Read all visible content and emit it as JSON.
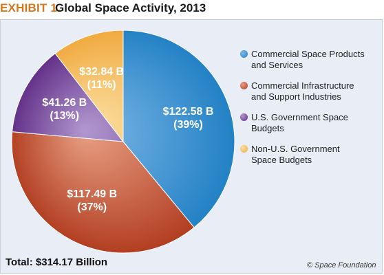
{
  "header": {
    "exhibit": "EXHIBIT 1.",
    "title": "Global Space Activity, 2013"
  },
  "chart_data": {
    "type": "pie",
    "title": "Global Space Activity, 2013",
    "unit": "Billion USD",
    "total_label": "Total: $314.17 Billion",
    "slices": [
      {
        "name": "Commercial Space Products and Services",
        "value": 122.58,
        "value_label": "$122.58 B",
        "percent_label": "(39%)",
        "color": "#1f7fc4",
        "color_light": "#7fb8e6"
      },
      {
        "name": "Commercial Infrastructure and Support Industries",
        "value": 117.49,
        "value_label": "$117.49 B",
        "percent_label": "(37%)",
        "color": "#b03a1d",
        "color_light": "#e8a085"
      },
      {
        "name": "U.S. Government Space Budgets",
        "value": 41.26,
        "value_label": "$41.26 B",
        "percent_label": "(13%)",
        "color": "#5e2a84",
        "color_light": "#b197cf"
      },
      {
        "name": "Non-U.S. Government Space Budgets",
        "value": 32.84,
        "value_label": "$32.84 B",
        "percent_label": "(11%)",
        "color": "#f0a73a",
        "color_light": "#fbe1a6"
      }
    ],
    "legend": [
      {
        "line1": "Commercial Space Products",
        "line2": "and Services"
      },
      {
        "line1": "Commercial Infrastructure",
        "line2": "and Support Industries"
      },
      {
        "line1": "U.S. Government Space",
        "line2": "Budgets"
      },
      {
        "line1": "Non-U.S. Government",
        "line2": "Space Budgets"
      }
    ],
    "legend_position": "right"
  },
  "footer": {
    "total": "Total: $314.17 Billion",
    "credit": "© Space Foundation"
  }
}
